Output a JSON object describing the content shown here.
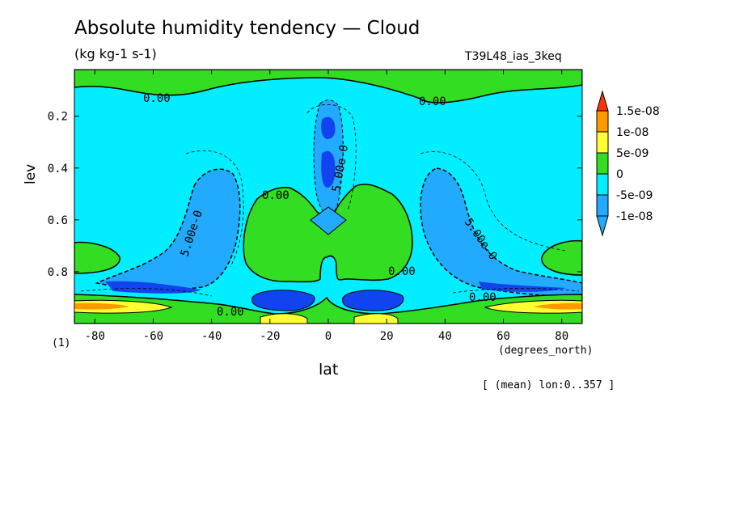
{
  "header": {
    "title": "Absolute humidity tendency — Cloud",
    "units": "(kg kg-1 s-1)",
    "run_name": "T39L48_ias_3keq"
  },
  "axes": {
    "xlabel": "lat",
    "xunit": "(degrees_north)",
    "ylabel": "lev",
    "panel_number": "(1)",
    "note": "[ (mean) lon:0..357 ]"
  },
  "colors": {
    "gt_1e-08": "#ff3300",
    "5e-09_1e-08": "#ff9900",
    "0_5e-09": "#ffff33",
    "m5e-09_0": "#33dd22",
    "m1e-08_m5e-09": "#00eeff",
    "lt_m1e-08": "#22aaff",
    "lowest": "#1144ee"
  },
  "chart_data": {
    "type": "heatmap",
    "title": "Absolute humidity tendency — Cloud",
    "subtitle": "(kg kg-1 s-1)",
    "xlabel": "lat",
    "ylabel": "lev",
    "xlim": [
      -87,
      87
    ],
    "ylim": [
      1.0,
      0.02
    ],
    "x_ticks": [
      "-80",
      "-60",
      "-40",
      "-20",
      "0",
      "20",
      "40",
      "60",
      "80"
    ],
    "x_tick_values": [
      -80,
      -60,
      -40,
      -20,
      0,
      20,
      40,
      60,
      80
    ],
    "y_ticks": [
      "0.2",
      "0.4",
      "0.6",
      "0.8"
    ],
    "y_tick_values": [
      0.2,
      0.4,
      0.6,
      0.8
    ],
    "colorbar_labels": [
      "1.5e-08",
      "1e-08",
      "5e-09",
      "0",
      "-5e-09",
      "-1e-08"
    ],
    "colorbar_values": [
      1.5e-08,
      1e-08,
      5e-09,
      0,
      -5e-09,
      -1e-08
    ],
    "contour_labels": [
      "0.00",
      "0.00",
      "0.00",
      "0.00",
      "0.00",
      "0.00",
      "5.00e-0",
      "5.00e-0",
      "5.00e-0"
    ],
    "regions": [
      {
        "name": "upper-boundary",
        "level": "0_5e-09",
        "lat": [
          -87,
          87
        ],
        "lev": [
          0.02,
          0.1
        ]
      },
      {
        "name": "tropical-upper-core",
        "level": "lowest",
        "lat": [
          -5,
          5
        ],
        "lev": [
          0.15,
          0.5
        ]
      },
      {
        "name": "tropical-midlevel",
        "level": "0_5e-09",
        "lat": [
          -30,
          30
        ],
        "lev": [
          0.45,
          0.85
        ]
      },
      {
        "name": "midlatitude-south",
        "level": "m1e-08_m5e-09",
        "lat": [
          -50,
          -35
        ],
        "lev": [
          0.4,
          0.85
        ]
      },
      {
        "name": "midlatitude-north",
        "level": "m1e-08_m5e-09",
        "lat": [
          35,
          50
        ],
        "lev": [
          0.4,
          0.85
        ]
      },
      {
        "name": "lower-south",
        "level": "gt_1e-08",
        "lat": [
          -85,
          -50
        ],
        "lev": [
          0.9,
          0.95
        ]
      },
      {
        "name": "lower-north",
        "level": "gt_1e-08",
        "lat": [
          50,
          85
        ],
        "lev": [
          0.9,
          0.95
        ]
      },
      {
        "name": "lower-tropics-south",
        "level": "lowest",
        "lat": [
          -25,
          -8
        ],
        "lev": [
          0.87,
          0.95
        ]
      },
      {
        "name": "lower-tropics-north",
        "level": "lowest",
        "lat": [
          8,
          25
        ],
        "lev": [
          0.87,
          0.95
        ]
      }
    ]
  }
}
